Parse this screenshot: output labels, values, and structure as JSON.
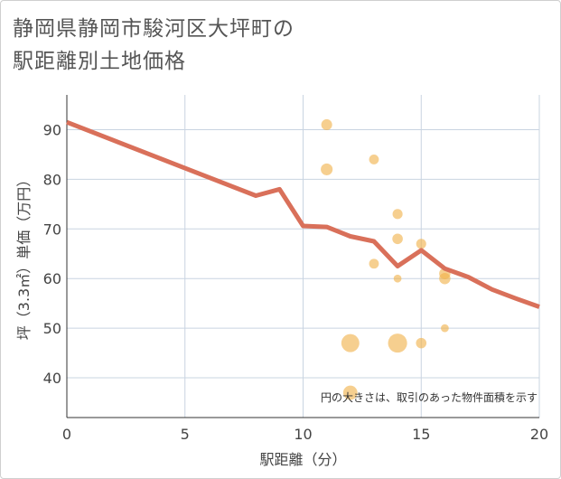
{
  "title_lines": [
    "静岡県静岡市駿河区大坪町の",
    "駅距離別土地価格"
  ],
  "chart_data": {
    "type": "scatter",
    "title": "静岡県静岡市駿河区大坪町の駅距離別土地価格",
    "xlabel": "駅距離（分）",
    "ylabel": "坪（3.3㎡）単価（万円）",
    "xlim": [
      0,
      20
    ],
    "ylim": [
      32,
      97
    ],
    "xticks": [
      0,
      5,
      10,
      15,
      20
    ],
    "yticks": [
      40,
      50,
      60,
      70,
      80,
      90
    ],
    "grid": true,
    "note": "円の大きさは、取引のあった物件面積を示す",
    "colors": {
      "points": "#f0b24b",
      "line": "#d9705a",
      "grid": "#c9d4e1"
    },
    "points": [
      {
        "x": 11,
        "y": 91,
        "size": 2
      },
      {
        "x": 11,
        "y": 82,
        "size": 2.5
      },
      {
        "x": 13,
        "y": 84,
        "size": 1.5
      },
      {
        "x": 14,
        "y": 73,
        "size": 1.6
      },
      {
        "x": 14,
        "y": 68,
        "size": 1.8
      },
      {
        "x": 15,
        "y": 67,
        "size": 1.6
      },
      {
        "x": 13,
        "y": 63,
        "size": 1.5
      },
      {
        "x": 14,
        "y": 60,
        "size": 0.8
      },
      {
        "x": 16,
        "y": 61,
        "size": 2.2
      },
      {
        "x": 16,
        "y": 60,
        "size": 2.2
      },
      {
        "x": 16,
        "y": 50,
        "size": 0.8
      },
      {
        "x": 12,
        "y": 47,
        "size": 7
      },
      {
        "x": 14,
        "y": 47,
        "size": 8
      },
      {
        "x": 15,
        "y": 47,
        "size": 1.8
      },
      {
        "x": 12,
        "y": 37,
        "size": 4
      }
    ],
    "trend_line": {
      "x": [
        0,
        8,
        9,
        10,
        11,
        12,
        13,
        14,
        15,
        16,
        17,
        18,
        19,
        20
      ],
      "y": [
        91.5,
        76.7,
        78,
        70.6,
        70.4,
        68.5,
        67.5,
        62.5,
        65.7,
        62,
        60.3,
        57.8,
        56,
        54.3
      ]
    }
  }
}
